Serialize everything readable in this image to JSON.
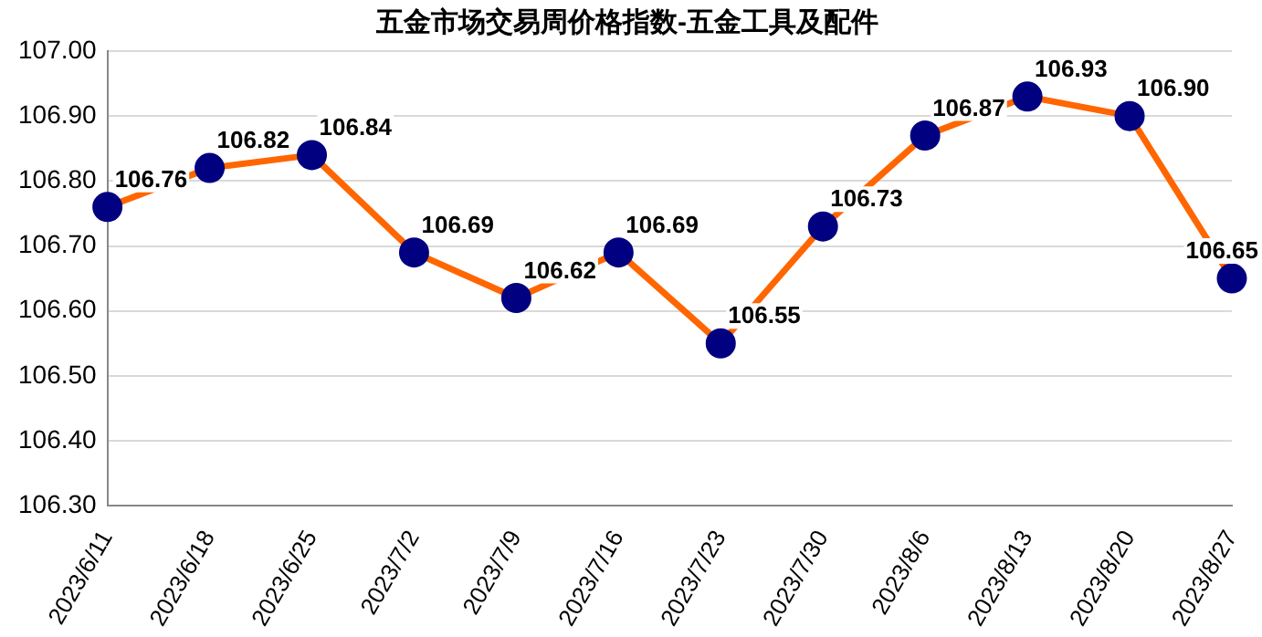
{
  "chart_data": {
    "type": "line",
    "title": "五金市场交易周价格指数-五金工具及配件",
    "categories": [
      "2023/6/11",
      "2023/6/18",
      "2023/6/25",
      "2023/7/2",
      "2023/7/9",
      "2023/7/16",
      "2023/7/23",
      "2023/7/30",
      "2023/8/6",
      "2023/8/13",
      "2023/8/20",
      "2023/8/27"
    ],
    "series": [
      {
        "color": "#ff6600",
        "colors": [
          "#000080",
          "#000080",
          "#000080",
          "#000080",
          "#000080",
          "#000080",
          "#000080",
          "#000080",
          "#000080",
          "#000080",
          "#000080",
          "#000080"
        ],
        "values": [
          106.76,
          106.82,
          106.84,
          106.69,
          106.62,
          106.69,
          106.55,
          106.73,
          106.87,
          106.93,
          106.9,
          106.65
        ],
        "value_labels": [
          "106.76",
          "106.82",
          "106.84",
          "106.69",
          "106.62",
          "106.69",
          "106.55",
          "106.73",
          "106.87",
          "106.93",
          "106.90",
          "106.65"
        ]
      }
    ],
    "ylim": [
      106.3,
      107
    ],
    "yticks": [
      {
        "value": 106.3,
        "label": "106.30"
      },
      {
        "value": 106.4,
        "label": "106.40"
      },
      {
        "value": 106.5,
        "label": "106.50"
      },
      {
        "value": 106.6,
        "label": "106.60"
      },
      {
        "value": 106.7,
        "label": "106.70"
      },
      {
        "value": 106.8,
        "label": "106.80"
      },
      {
        "value": 106.9,
        "label": "106.90"
      },
      {
        "value": 107,
        "label": "107.00"
      }
    ],
    "grid": "y",
    "legend": false,
    "marker": "circle",
    "line_style": "solid"
  }
}
